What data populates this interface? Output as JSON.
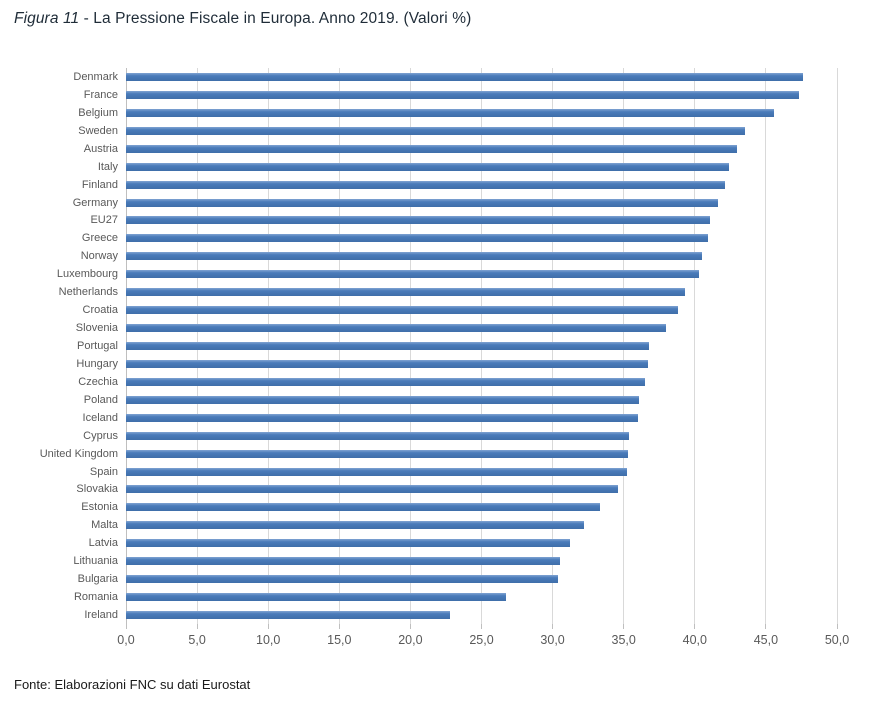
{
  "title": {
    "prefix": "Figura 11",
    "rest": " - La Pressione Fiscale in Europa. Anno 2019. (Valori %)"
  },
  "footer": "Fonte: Elaborazioni FNC su dati Eurostat",
  "chart_data": {
    "type": "bar",
    "orientation": "horizontal",
    "title": "Figura 11 - La Pressione Fiscale in Europa. Anno 2019. (Valori %)",
    "xlabel": "",
    "ylabel": "",
    "xlim": [
      0,
      50
    ],
    "grid": true,
    "legend": "none",
    "categories": [
      "Denmark",
      "France",
      "Belgium",
      "Sweden",
      "Austria",
      "Italy",
      "Finland",
      "Germany",
      "EU27",
      "Greece",
      "Norway",
      "Luxembourg",
      "Netherlands",
      "Croatia",
      "Slovenia",
      "Portugal",
      "Hungary",
      "Czechia",
      "Poland",
      "Iceland",
      "Cyprus",
      "United Kingdom",
      "Spain",
      "Slovakia",
      "Estonia",
      "Malta",
      "Latvia",
      "Lithuania",
      "Bulgaria",
      "Romania",
      "Ireland"
    ],
    "values": [
      47.6,
      47.3,
      45.6,
      43.5,
      43.0,
      42.4,
      42.1,
      41.6,
      41.1,
      40.9,
      40.5,
      40.3,
      39.3,
      38.8,
      38.0,
      36.8,
      36.7,
      36.5,
      36.1,
      36.0,
      35.4,
      35.3,
      35.2,
      34.6,
      33.3,
      32.2,
      31.2,
      30.5,
      30.4,
      26.7,
      22.8
    ],
    "x_tick_values": [
      0,
      5,
      10,
      15,
      20,
      25,
      30,
      35,
      40,
      45,
      50
    ],
    "x_tick_labels": [
      "0,0",
      "5,0",
      "10,0",
      "15,0",
      "20,0",
      "25,0",
      "30,0",
      "35,0",
      "40,0",
      "45,0",
      "50,0"
    ],
    "colors": {
      "bar": "#4a7bba",
      "bar_highlight": "#7fa3d2",
      "bar_edge": "#3f6ea9",
      "gridline": "#d9d9d9",
      "axis": "#bfbfbf",
      "tick_label": "#595959",
      "category_label": "#595959",
      "title_text": "#1f2c38",
      "source_text": "#1a1a1a"
    }
  }
}
